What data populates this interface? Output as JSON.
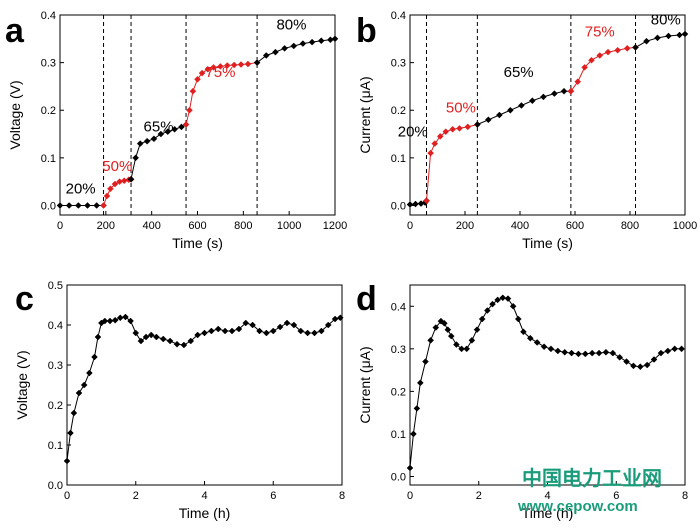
{
  "watermark": {
    "text_cn": "中国电力工业网",
    "url": "www.cepow.com",
    "color": "#1a9c7a"
  },
  "chart_data": [
    {
      "panel": "a",
      "type": "line",
      "xlabel": "Time (s)",
      "ylabel": "Voltage (V)",
      "xlim": [
        0,
        1200
      ],
      "ylim": [
        -0.02,
        0.4
      ],
      "xticks": [
        0,
        200,
        400,
        600,
        800,
        1000,
        1200
      ],
      "yticks": [
        0.0,
        0.1,
        0.2,
        0.3,
        0.4
      ],
      "dividers": [
        190,
        310,
        550,
        860
      ],
      "annotations": [
        {
          "text": "20%",
          "x": 90,
          "y": 0.025,
          "color": "#000000"
        },
        {
          "text": "50%",
          "x": 250,
          "y": 0.072,
          "color": "#e02020"
        },
        {
          "text": "65%",
          "x": 430,
          "y": 0.155,
          "color": "#000000"
        },
        {
          "text": "75%",
          "x": 700,
          "y": 0.27,
          "color": "#e02020"
        },
        {
          "text": "80%",
          "x": 1010,
          "y": 0.37,
          "color": "#000000"
        }
      ],
      "series": [
        {
          "color": "#000000",
          "x": [
            0,
            40,
            80,
            120,
            160,
            190
          ],
          "y": [
            0.0,
            0.0,
            0.0,
            0.0,
            0.0,
            0.0
          ]
        },
        {
          "color": "#e02020",
          "x": [
            190,
            205,
            220,
            240,
            260,
            280,
            300,
            310
          ],
          "y": [
            0.0,
            0.02,
            0.035,
            0.045,
            0.05,
            0.052,
            0.054,
            0.055
          ]
        },
        {
          "color": "#000000",
          "x": [
            310,
            330,
            350,
            380,
            410,
            440,
            470,
            500,
            530,
            550
          ],
          "y": [
            0.055,
            0.1,
            0.13,
            0.135,
            0.14,
            0.15,
            0.155,
            0.16,
            0.165,
            0.17
          ]
        },
        {
          "color": "#e02020",
          "x": [
            550,
            565,
            580,
            600,
            620,
            645,
            670,
            700,
            730,
            760,
            790,
            820,
            860
          ],
          "y": [
            0.17,
            0.2,
            0.24,
            0.265,
            0.278,
            0.286,
            0.29,
            0.292,
            0.294,
            0.295,
            0.296,
            0.297,
            0.3
          ]
        },
        {
          "color": "#000000",
          "x": [
            860,
            900,
            940,
            980,
            1020,
            1060,
            1100,
            1140,
            1180,
            1200
          ],
          "y": [
            0.3,
            0.315,
            0.322,
            0.33,
            0.335,
            0.34,
            0.343,
            0.346,
            0.348,
            0.35
          ]
        }
      ]
    },
    {
      "panel": "b",
      "type": "line",
      "xlabel": "Time (s)",
      "ylabel": "Current (μA)",
      "xlim": [
        0,
        1000
      ],
      "ylim": [
        -0.02,
        0.4
      ],
      "xticks": [
        0,
        200,
        400,
        600,
        800,
        1000
      ],
      "yticks": [
        0.0,
        0.1,
        0.2,
        0.3,
        0.4
      ],
      "dividers": [
        60,
        245,
        585,
        820
      ],
      "annotations": [
        {
          "text": "20%",
          "x": 10,
          "y": 0.145,
          "color": "#000000"
        },
        {
          "text": "50%",
          "x": 185,
          "y": 0.195,
          "color": "#e02020"
        },
        {
          "text": "65%",
          "x": 395,
          "y": 0.27,
          "color": "#000000"
        },
        {
          "text": "75%",
          "x": 690,
          "y": 0.355,
          "color": "#e02020"
        },
        {
          "text": "80%",
          "x": 930,
          "y": 0.38,
          "color": "#000000"
        }
      ],
      "series": [
        {
          "color": "#000000",
          "x": [
            0,
            20,
            40,
            55,
            60
          ],
          "y": [
            0.002,
            0.003,
            0.004,
            0.006,
            0.01
          ]
        },
        {
          "color": "#e02020",
          "x": [
            60,
            75,
            90,
            110,
            130,
            155,
            180,
            210,
            245
          ],
          "y": [
            0.01,
            0.11,
            0.13,
            0.145,
            0.155,
            0.16,
            0.162,
            0.165,
            0.17
          ]
        },
        {
          "color": "#000000",
          "x": [
            245,
            285,
            325,
            365,
            405,
            445,
            485,
            525,
            560,
            585
          ],
          "y": [
            0.17,
            0.18,
            0.19,
            0.2,
            0.21,
            0.22,
            0.228,
            0.235,
            0.24,
            0.24
          ]
        },
        {
          "color": "#e02020",
          "x": [
            585,
            610,
            635,
            660,
            690,
            720,
            755,
            790,
            820
          ],
          "y": [
            0.24,
            0.26,
            0.29,
            0.305,
            0.315,
            0.322,
            0.326,
            0.33,
            0.332
          ]
        },
        {
          "color": "#000000",
          "x": [
            820,
            860,
            900,
            940,
            980,
            1000
          ],
          "y": [
            0.332,
            0.345,
            0.352,
            0.356,
            0.358,
            0.36
          ]
        }
      ]
    },
    {
      "panel": "c",
      "type": "line",
      "xlabel": "Time (h)",
      "ylabel": "Voltage (V)",
      "xlim": [
        0,
        8
      ],
      "ylim": [
        0,
        0.5
      ],
      "xticks": [
        0,
        2,
        4,
        6,
        8
      ],
      "yticks": [
        0.0,
        0.1,
        0.2,
        0.3,
        0.4,
        0.5
      ],
      "series": [
        {
          "color": "#000000",
          "x": [
            0,
            0.1,
            0.2,
            0.35,
            0.5,
            0.65,
            0.8,
            0.9,
            1.0,
            1.1,
            1.25,
            1.4,
            1.55,
            1.7,
            1.85,
            2.0,
            2.15,
            2.3,
            2.45,
            2.6,
            2.8,
            3.0,
            3.2,
            3.4,
            3.6,
            3.8,
            4.0,
            4.2,
            4.4,
            4.6,
            4.8,
            5.0,
            5.2,
            5.4,
            5.6,
            5.8,
            6.0,
            6.2,
            6.4,
            6.6,
            6.8,
            7.0,
            7.2,
            7.4,
            7.6,
            7.8,
            7.95
          ],
          "y": [
            0.06,
            0.13,
            0.18,
            0.23,
            0.25,
            0.28,
            0.32,
            0.37,
            0.405,
            0.41,
            0.41,
            0.412,
            0.418,
            0.42,
            0.41,
            0.38,
            0.36,
            0.37,
            0.375,
            0.37,
            0.365,
            0.36,
            0.352,
            0.35,
            0.36,
            0.375,
            0.38,
            0.385,
            0.39,
            0.385,
            0.385,
            0.39,
            0.405,
            0.4,
            0.385,
            0.38,
            0.385,
            0.395,
            0.405,
            0.4,
            0.385,
            0.38,
            0.38,
            0.385,
            0.4,
            0.415,
            0.418
          ]
        }
      ]
    },
    {
      "panel": "d",
      "type": "line",
      "xlabel": "Time (h)",
      "ylabel": "Current (μA)",
      "xlim": [
        0,
        8
      ],
      "ylim": [
        -0.02,
        0.45
      ],
      "xticks": [
        0,
        2,
        4,
        6,
        8
      ],
      "yticks": [
        0.0,
        0.1,
        0.2,
        0.3,
        0.4
      ],
      "series": [
        {
          "color": "#000000",
          "x": [
            0,
            0.1,
            0.2,
            0.3,
            0.45,
            0.6,
            0.75,
            0.9,
            1.0,
            1.1,
            1.2,
            1.35,
            1.5,
            1.65,
            1.8,
            1.95,
            2.1,
            2.25,
            2.4,
            2.55,
            2.7,
            2.85,
            3.0,
            3.15,
            3.3,
            3.5,
            3.7,
            3.9,
            4.1,
            4.3,
            4.5,
            4.7,
            4.9,
            5.1,
            5.3,
            5.5,
            5.7,
            5.9,
            6.1,
            6.3,
            6.5,
            6.7,
            6.9,
            7.1,
            7.3,
            7.5,
            7.7,
            7.9
          ],
          "y": [
            0.02,
            0.1,
            0.16,
            0.22,
            0.27,
            0.32,
            0.35,
            0.365,
            0.36,
            0.345,
            0.33,
            0.31,
            0.3,
            0.3,
            0.32,
            0.345,
            0.37,
            0.39,
            0.405,
            0.415,
            0.42,
            0.418,
            0.4,
            0.37,
            0.34,
            0.325,
            0.315,
            0.305,
            0.3,
            0.295,
            0.292,
            0.29,
            0.288,
            0.288,
            0.29,
            0.29,
            0.292,
            0.29,
            0.28,
            0.27,
            0.26,
            0.258,
            0.262,
            0.275,
            0.29,
            0.295,
            0.3,
            0.3
          ]
        }
      ]
    }
  ]
}
